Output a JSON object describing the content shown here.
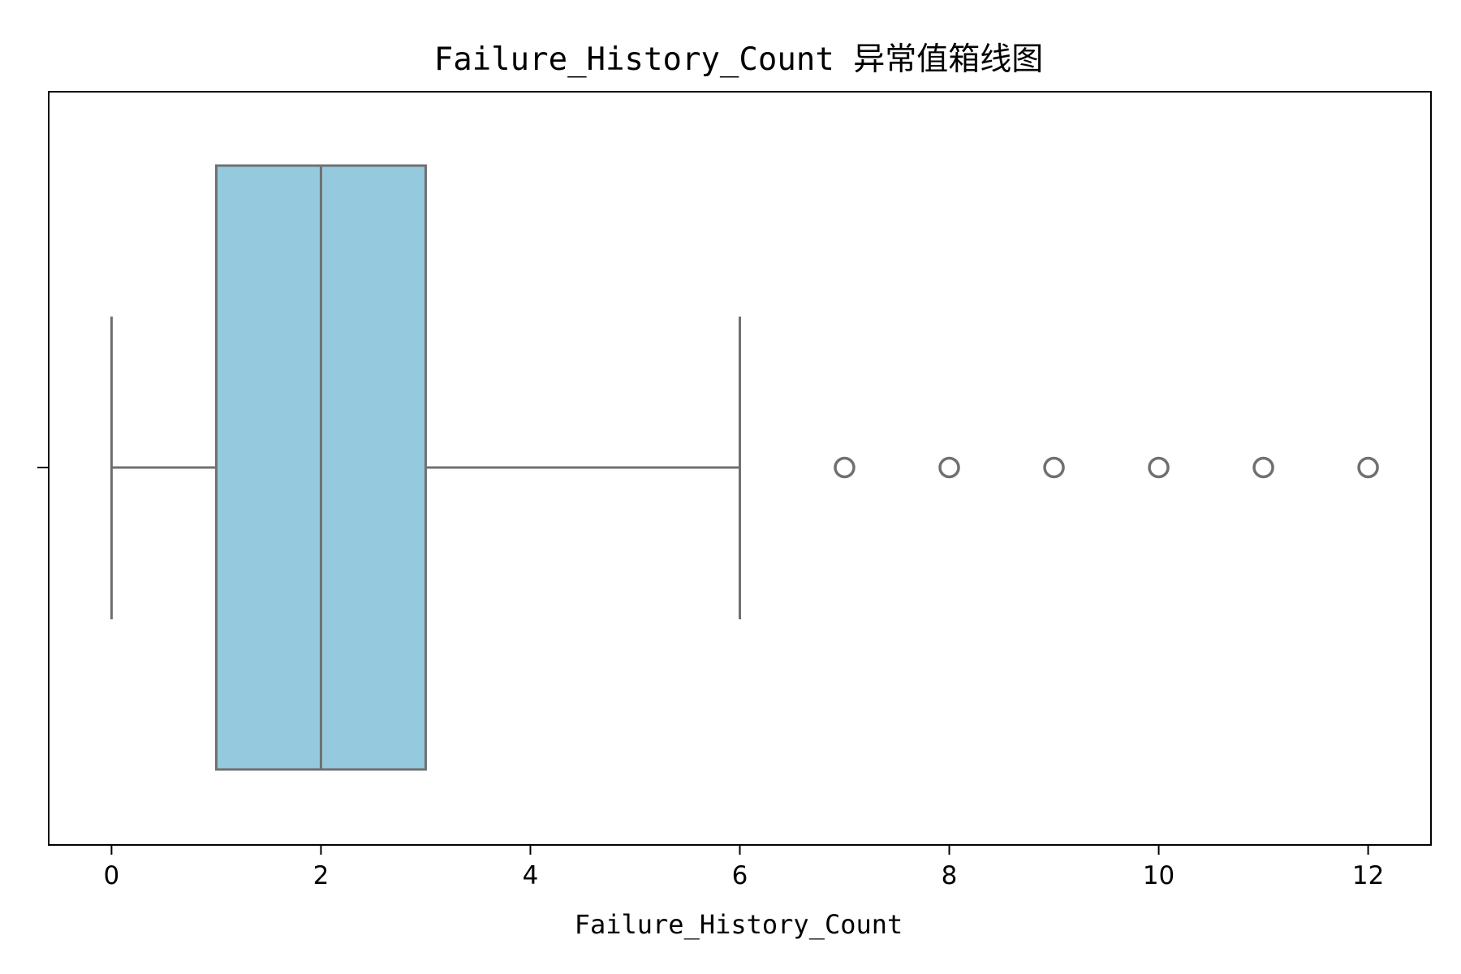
{
  "chart_data": {
    "type": "box",
    "title": "Failure_History_Count 异常值箱线图",
    "xlabel": "Failure_History_Count",
    "ylabel": "",
    "xlim": [
      -0.6,
      12.6
    ],
    "xticks": [
      0,
      2,
      4,
      6,
      8,
      10,
      12
    ],
    "xtick_labels": [
      "0",
      "2",
      "4",
      "6",
      "8",
      "10",
      "12"
    ],
    "grid": false,
    "box": {
      "whisker_low": 0,
      "q1": 1,
      "median": 2,
      "q3": 3,
      "whisker_high": 6
    },
    "outliers": [
      7,
      8,
      9,
      10,
      11,
      12
    ],
    "colors": {
      "box_fill": "#95c9de",
      "box_edge": "#707070",
      "axis": "#000000"
    }
  }
}
